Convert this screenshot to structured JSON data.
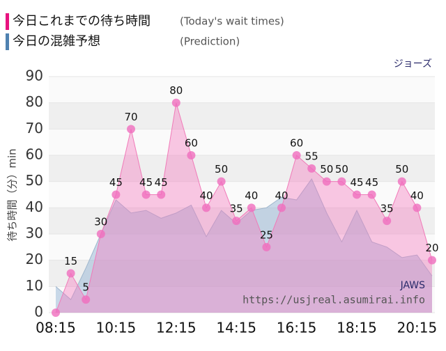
{
  "chart_data": {
    "type": "area",
    "attraction": "ジョーズ",
    "watermark": "JAWS",
    "source": "https://usjreal.asumirai.info",
    "y_label": "待ち時間（分）min",
    "categories": [
      "08:15",
      null,
      null,
      null,
      "10:15",
      null,
      null,
      null,
      "12:15",
      null,
      null,
      null,
      "14:15",
      null,
      null,
      null,
      "16:15",
      null,
      null,
      null,
      "18:15",
      null,
      null,
      null,
      "20:15",
      null
    ],
    "series": [
      {
        "name": "今日の混雑予想",
        "name_en": "(Prediction)",
        "color": "#4f81b0",
        "values": [
          10,
          5,
          17,
          30,
          43,
          38,
          39,
          36,
          38,
          41,
          29,
          39,
          34,
          39,
          40,
          44,
          43,
          51,
          38,
          27,
          39,
          27,
          25,
          21,
          22,
          14
        ]
      },
      {
        "name": "今日これまでの待ち時間",
        "name_en": "(Today's wait times)",
        "color": "#e8137f",
        "values": [
          0,
          15,
          5,
          30,
          45,
          70,
          45,
          45,
          80,
          60,
          40,
          50,
          35,
          40,
          25,
          40,
          60,
          55,
          50,
          50,
          45,
          45,
          35,
          50,
          40,
          20
        ],
        "value_labels": [
          null,
          "15",
          "5",
          "30",
          "45",
          "70",
          "45",
          "45",
          "80",
          "60",
          "40",
          "50",
          "35",
          "40",
          "25",
          "40",
          "60",
          "55",
          "50",
          "50",
          "45",
          "45",
          "35",
          "50",
          "40",
          "20"
        ]
      }
    ],
    "ylim": [
      0,
      90
    ],
    "yticks": [
      0,
      10,
      20,
      30,
      40,
      50,
      60,
      70,
      80,
      90
    ],
    "grid": true
  }
}
